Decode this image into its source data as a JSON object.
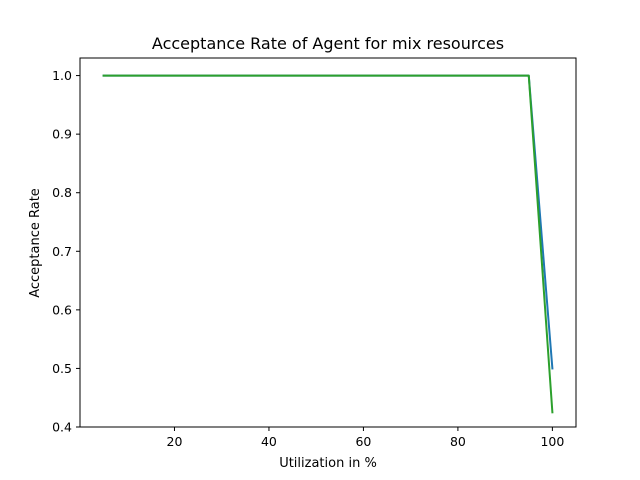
{
  "chart_data": {
    "type": "line",
    "title": "Acceptance Rate of Agent for mix resources",
    "xlabel": "Utilization in %",
    "ylabel": "Acceptance Rate",
    "xlim": [
      0,
      105
    ],
    "ylim": [
      0.4,
      1.03
    ],
    "xticks": [
      20,
      40,
      60,
      80,
      100
    ],
    "yticks": [
      0.4,
      0.5,
      0.6,
      0.7,
      0.8,
      0.9,
      1.0
    ],
    "xtick_labels": [
      "20",
      "40",
      "60",
      "80",
      "100"
    ],
    "ytick_labels": [
      "0.4",
      "0.5",
      "0.6",
      "0.7",
      "0.8",
      "0.9",
      "1.0"
    ],
    "grid": false,
    "series": [
      {
        "x": [
          5,
          95,
          100
        ],
        "values": [
          1.0,
          1.0,
          0.5
        ],
        "color": "#1f77b4"
      },
      {
        "x": [
          5,
          95,
          100
        ],
        "values": [
          1.0,
          1.0,
          0.425
        ],
        "color": "#2ca02c"
      }
    ]
  }
}
